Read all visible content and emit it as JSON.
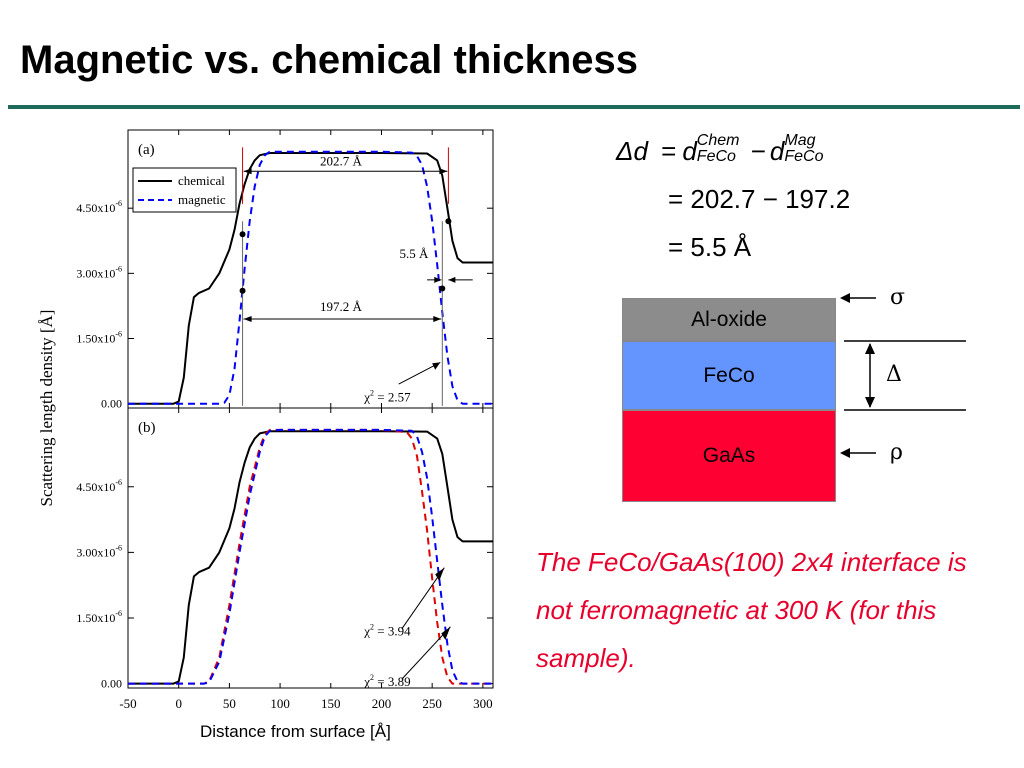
{
  "title": "Magnetic vs. chemical thickness",
  "equations": {
    "line1_lhs": "Δd",
    "d_symbol": "d",
    "chem_sup": "Chem",
    "mag_sup": "Mag",
    "sub": "FeCo",
    "line2": "= 202.7 − 197.2",
    "line3": "= 5.5 Å"
  },
  "layers": {
    "items": [
      {
        "label": "Al-oxide",
        "color": "#8c8c8c"
      },
      {
        "label": "FeCo",
        "color": "#6495ff"
      },
      {
        "label": "GaAs",
        "color": "#ff0033"
      }
    ],
    "sigma": "σ",
    "delta": "Δ",
    "rho": "ρ"
  },
  "note": "The FeCo/GaAs(100) 2x4 interface is not ferromagnetic at 300 K (for this sample).",
  "chart_data": [
    {
      "type": "line",
      "panel_label": "(a)",
      "ylabel": "Scattering length density [Å]",
      "xlabel": "Distance from surface [Å]",
      "xlim": [
        -50,
        310
      ],
      "ylim": [
        -1e-07,
        6.3e-06
      ],
      "yticks": [
        "0.00",
        "1.50x10-6",
        "3.00x10-6",
        "4.50x10-6"
      ],
      "legend": [
        "chemical",
        "magnetic"
      ],
      "legend_position": "top-left",
      "series": [
        {
          "name": "chemical",
          "color": "#000000",
          "style": "solid",
          "x": [
            -50,
            -5,
            0,
            5,
            10,
            15,
            20,
            30,
            40,
            50,
            55,
            60,
            65,
            70,
            75,
            80,
            90,
            100,
            150,
            200,
            245,
            255,
            260,
            265,
            270,
            275,
            280,
            290,
            310
          ],
          "y": [
            0,
            0,
            5e-08,
            6e-07,
            1.8e-06,
            2.45e-06,
            2.55e-06,
            2.65e-06,
            3e-06,
            3.55e-06,
            4e-06,
            4.6e-06,
            5.05e-06,
            5.4e-06,
            5.6e-06,
            5.72e-06,
            5.77e-06,
            5.77e-06,
            5.77e-06,
            5.77e-06,
            5.76e-06,
            5.6e-06,
            5.25e-06,
            4.5e-06,
            3.75e-06,
            3.35e-06,
            3.25e-06,
            3.25e-06,
            3.25e-06
          ]
        },
        {
          "name": "magnetic",
          "color": "#0000ff",
          "style": "dashed",
          "x": [
            -50,
            40,
            45,
            50,
            55,
            60,
            65,
            70,
            75,
            80,
            85,
            90,
            100,
            150,
            200,
            230,
            235,
            240,
            245,
            250,
            255,
            260,
            265,
            270,
            275,
            280,
            285,
            290,
            310
          ],
          "y": [
            0,
            0,
            2e-08,
            2e-07,
            8e-07,
            1.9e-06,
            3.1e-06,
            4.2e-06,
            5e-06,
            5.5e-06,
            5.72e-06,
            5.8e-06,
            5.8e-06,
            5.8e-06,
            5.8e-06,
            5.78e-06,
            5.7e-06,
            5.5e-06,
            5e-06,
            4.2e-06,
            3.2e-06,
            2.1e-06,
            1.1e-06,
            4e-07,
            8e-08,
            0,
            0,
            0,
            0
          ]
        }
      ],
      "annotations": {
        "chem_width": "202.7 Å",
        "mag_width": "197.2 Å",
        "diff": "5.5 Å",
        "chi_label": "χ",
        "chi_sup": "2",
        "chi_value": " = 2.57"
      }
    },
    {
      "type": "line",
      "panel_label": "(b)",
      "xlim": [
        -50,
        310
      ],
      "ylim": [
        -1e-07,
        6.3e-06
      ],
      "xticks": [
        "-50",
        "0",
        "50",
        "100",
        "150",
        "200",
        "250",
        "300"
      ],
      "yticks": [
        "0.00",
        "1.50x10-6",
        "3.00x10-6",
        "4.50x10-6"
      ],
      "series": [
        {
          "name": "chemical",
          "color": "#000000",
          "style": "solid",
          "x": [
            -50,
            -5,
            0,
            5,
            10,
            15,
            20,
            30,
            40,
            50,
            55,
            60,
            65,
            70,
            75,
            80,
            90,
            100,
            150,
            200,
            245,
            255,
            260,
            265,
            270,
            275,
            280,
            290,
            310
          ],
          "y": [
            0,
            0,
            5e-08,
            6e-07,
            1.8e-06,
            2.45e-06,
            2.55e-06,
            2.65e-06,
            3e-06,
            3.55e-06,
            4e-06,
            4.6e-06,
            5.05e-06,
            5.4e-06,
            5.6e-06,
            5.72e-06,
            5.77e-06,
            5.77e-06,
            5.77e-06,
            5.77e-06,
            5.76e-06,
            5.6e-06,
            5.25e-06,
            4.5e-06,
            3.75e-06,
            3.35e-06,
            3.25e-06,
            3.25e-06,
            3.25e-06
          ]
        },
        {
          "color": "#e00000",
          "style": "dashed",
          "x": [
            -50,
            25,
            30,
            40,
            50,
            60,
            70,
            80,
            85,
            90,
            100,
            150,
            200,
            225,
            230,
            235,
            240,
            245,
            250,
            255,
            260,
            265,
            270,
            280,
            310
          ],
          "y": [
            0,
            0,
            5e-08,
            6e-07,
            1.8e-06,
            3.2e-06,
            4.5e-06,
            5.4e-06,
            5.7e-06,
            5.8e-06,
            5.8e-06,
            5.8e-06,
            5.8e-06,
            5.75e-06,
            5.6e-06,
            5.2e-06,
            4.4e-06,
            3.5e-06,
            2.4e-06,
            1.4e-06,
            6e-07,
            1.5e-07,
            0,
            0,
            0
          ]
        },
        {
          "color": "#0000ff",
          "style": "dashed",
          "x": [
            -50,
            25,
            30,
            40,
            50,
            60,
            70,
            80,
            85,
            90,
            100,
            150,
            200,
            230,
            235,
            240,
            245,
            250,
            255,
            260,
            265,
            270,
            275,
            280,
            310
          ],
          "y": [
            0,
            0,
            3e-08,
            5e-07,
            1.6e-06,
            3e-06,
            4.3e-06,
            5.3e-06,
            5.65e-06,
            5.78e-06,
            5.8e-06,
            5.8e-06,
            5.8e-06,
            5.78e-06,
            5.65e-06,
            5.3e-06,
            4.7e-06,
            3.8e-06,
            2.8e-06,
            1.8e-06,
            9e-07,
            3e-07,
            5e-08,
            0,
            0
          ]
        }
      ],
      "annotations": {
        "chi_label": "χ",
        "chi_sup": "2",
        "chi1_value": " = 3.94",
        "chi2_value": " = 3.89"
      }
    }
  ]
}
